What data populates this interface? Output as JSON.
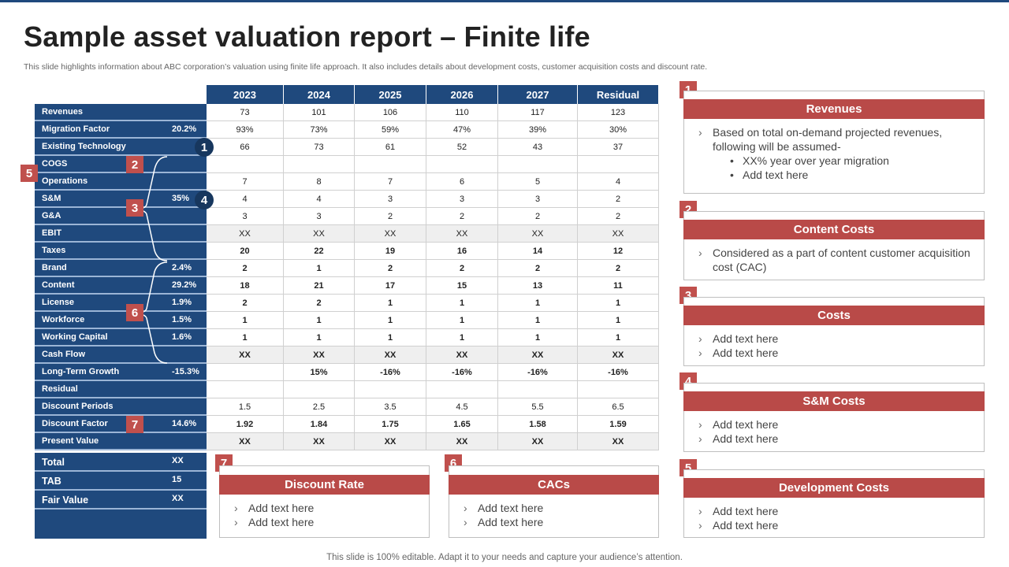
{
  "title": "Sample asset valuation report – Finite life",
  "subtitle": "This slide highlights information about ABC corporation’s valuation using finite life approach. It also includes details about development costs, customer acquisition costs and discount rate.",
  "footer": "This slide is 100% editable. Adapt it to your needs and capture your audience’s attention.",
  "colors": {
    "navy": "#1f497d",
    "red": "#c0504d",
    "card_header": "#b94a48",
    "shade": "#efefef"
  },
  "table": {
    "years": [
      "2023",
      "2024",
      "2025",
      "2026",
      "2027",
      "Residual"
    ],
    "rows": [
      {
        "label": "Revenues",
        "pct": "",
        "values": [
          "73",
          "101",
          "106",
          "110",
          "117",
          "123"
        ]
      },
      {
        "label": "Migration Factor",
        "pct": "20.2%",
        "values": [
          "93%",
          "73%",
          "59%",
          "47%",
          "39%",
          "30%"
        ]
      },
      {
        "label": "Existing Technology",
        "pct": "",
        "values": [
          "66",
          "73",
          "61",
          "52",
          "43",
          "37"
        ]
      },
      {
        "label": "COGS",
        "pct": "",
        "values": [
          "",
          "",
          "",
          "",
          "",
          ""
        ]
      },
      {
        "label": "Operations",
        "pct": "",
        "values": [
          "7",
          "8",
          "7",
          "6",
          "5",
          "4"
        ]
      },
      {
        "label": "S&M",
        "pct": "35%",
        "values": [
          "4",
          "4",
          "3",
          "3",
          "3",
          "2"
        ]
      },
      {
        "label": "G&A",
        "pct": "",
        "values": [
          "3",
          "3",
          "2",
          "2",
          "2",
          "2"
        ]
      },
      {
        "label": "EBIT",
        "pct": "",
        "shade": true,
        "values": [
          "XX",
          "XX",
          "XX",
          "XX",
          "XX",
          "XX"
        ]
      },
      {
        "label": "Taxes",
        "pct": "",
        "bold": true,
        "values": [
          "20",
          "22",
          "19",
          "16",
          "14",
          "12"
        ]
      },
      {
        "label": "Brand",
        "pct": "2.4%",
        "bold": true,
        "values": [
          "2",
          "1",
          "2",
          "2",
          "2",
          "2"
        ]
      },
      {
        "label": "Content",
        "pct": "29.2%",
        "bold": true,
        "values": [
          "18",
          "21",
          "17",
          "15",
          "13",
          "11"
        ]
      },
      {
        "label": "License",
        "pct": "1.9%",
        "bold": true,
        "values": [
          "2",
          "2",
          "1",
          "1",
          "1",
          "1"
        ]
      },
      {
        "label": "Workforce",
        "pct": "1.5%",
        "bold": true,
        "values": [
          "1",
          "1",
          "1",
          "1",
          "1",
          "1"
        ]
      },
      {
        "label": "Working Capital",
        "pct": "1.6%",
        "bold": true,
        "values": [
          "1",
          "1",
          "1",
          "1",
          "1",
          "1"
        ]
      },
      {
        "label": "Cash Flow",
        "pct": "",
        "shade": true,
        "bold": true,
        "values": [
          "XX",
          "XX",
          "XX",
          "XX",
          "XX",
          "XX"
        ]
      },
      {
        "label": "Long-Term Growth",
        "pct": "-15.3%",
        "bold": true,
        "values": [
          "",
          "15%",
          "-16%",
          "-16%",
          "-16%",
          "-16%"
        ]
      },
      {
        "label": "Residual",
        "pct": "",
        "values": [
          "",
          "",
          "",
          "",
          "",
          ""
        ]
      },
      {
        "label": "Discount Periods",
        "pct": "",
        "values": [
          "1.5",
          "2.5",
          "3.5",
          "4.5",
          "5.5",
          "6.5"
        ]
      },
      {
        "label": "Discount Factor",
        "pct": "14.6%",
        "bold": true,
        "values": [
          "1.92",
          "1.84",
          "1.75",
          "1.65",
          "1.58",
          "1.59"
        ]
      },
      {
        "label": "Present Value",
        "pct": "",
        "shade": true,
        "bold": true,
        "values": [
          "XX",
          "XX",
          "XX",
          "XX",
          "XX",
          "XX"
        ]
      }
    ],
    "summary": [
      {
        "label": "Total",
        "value": "XX"
      },
      {
        "label": "TAB",
        "value": "15"
      },
      {
        "label": "Fair Value",
        "value": "XX"
      }
    ]
  },
  "markers": {
    "m1": "1",
    "m2": "2",
    "m3": "3",
    "m4": "4",
    "m5": "5",
    "m6": "6",
    "m7": "7"
  },
  "cards": [
    {
      "num": "1",
      "title": "Revenues",
      "items": [
        "Based on total on-demand projected revenues, following will be assumed-"
      ],
      "subitems": [
        "XX% year over year migration",
        "Add text here"
      ]
    },
    {
      "num": "2",
      "title": "Content Costs",
      "items": [
        "Considered as a part of content customer acquisition cost (CAC)"
      ]
    },
    {
      "num": "3",
      "title": "Costs",
      "items": [
        "Add text here",
        "Add text here"
      ]
    },
    {
      "num": "4",
      "title": "S&M Costs",
      "items": [
        "Add text here",
        "Add text here"
      ]
    },
    {
      "num": "5",
      "title": "Development Costs",
      "items": [
        "Add text here",
        "Add text here"
      ]
    },
    {
      "num": "7",
      "title": "Discount Rate",
      "items": [
        "Add text here",
        "Add text here"
      ]
    },
    {
      "num": "6",
      "title": "CACs",
      "items": [
        "Add text here",
        "Add text here"
      ]
    }
  ]
}
